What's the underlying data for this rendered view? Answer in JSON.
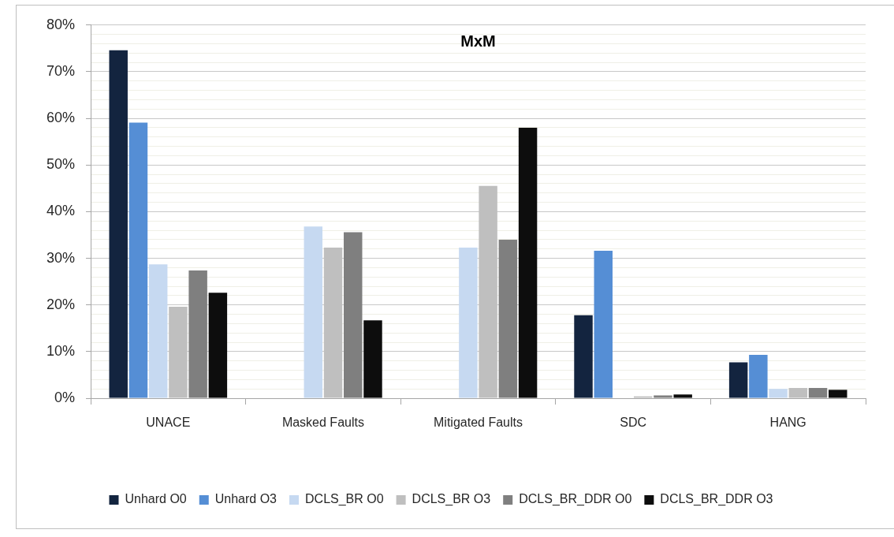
{
  "chart_data": {
    "type": "bar",
    "title": "MxM",
    "categories": [
      "UNACE",
      "Masked Faults",
      "Mitigated Faults",
      "SDC",
      "HANG"
    ],
    "series": [
      {
        "name": "Unhard O0",
        "color": "#13243f",
        "values": [
          74.6,
          null,
          null,
          17.8,
          7.7
        ]
      },
      {
        "name": "Unhard O3",
        "color": "#558ed5",
        "values": [
          59.1,
          null,
          null,
          31.6,
          9.3
        ]
      },
      {
        "name": "DCLS_BR O0",
        "color": "#c6d9f1",
        "values": [
          28.7,
          36.8,
          32.3,
          null,
          2.0
        ]
      },
      {
        "name": "DCLS_BR O3",
        "color": "#bfbfbf",
        "values": [
          19.6,
          32.3,
          45.5,
          0.4,
          2.2
        ]
      },
      {
        "name": "DCLS_BR_DDR O0",
        "color": "#7f7f7f",
        "values": [
          27.4,
          35.6,
          34.0,
          0.6,
          2.2
        ]
      },
      {
        "name": "DCLS_BR_DDR O3",
        "color": "#0d0d0d",
        "values": [
          22.6,
          16.7,
          58.0,
          0.8,
          1.8
        ]
      }
    ],
    "ylim": [
      0,
      80
    ],
    "yticks": [
      {
        "value": 0,
        "label": "0%"
      },
      {
        "value": 2,
        "label": null
      },
      {
        "value": 4,
        "label": null
      },
      {
        "value": 6,
        "label": null
      },
      {
        "value": 8,
        "label": null
      },
      {
        "value": 10,
        "label": "10%"
      },
      {
        "value": 12,
        "label": null
      },
      {
        "value": 14,
        "label": null
      },
      {
        "value": 16,
        "label": null
      },
      {
        "value": 18,
        "label": null
      },
      {
        "value": 20,
        "label": "20%"
      },
      {
        "value": 22,
        "label": null
      },
      {
        "value": 24,
        "label": null
      },
      {
        "value": 26,
        "label": null
      },
      {
        "value": 28,
        "label": null
      },
      {
        "value": 30,
        "label": "30%"
      },
      {
        "value": 32,
        "label": null
      },
      {
        "value": 34,
        "label": null
      },
      {
        "value": 36,
        "label": null
      },
      {
        "value": 38,
        "label": null
      },
      {
        "value": 40,
        "label": "40%"
      },
      {
        "value": 42,
        "label": null
      },
      {
        "value": 44,
        "label": null
      },
      {
        "value": 46,
        "label": null
      },
      {
        "value": 48,
        "label": null
      },
      {
        "value": 50,
        "label": "50%"
      },
      {
        "value": 52,
        "label": null
      },
      {
        "value": 54,
        "label": null
      },
      {
        "value": 56,
        "label": null
      },
      {
        "value": 58,
        "label": null
      },
      {
        "value": 60,
        "label": "60%"
      },
      {
        "value": 62,
        "label": null
      },
      {
        "value": 64,
        "label": null
      },
      {
        "value": 66,
        "label": null
      },
      {
        "value": 68,
        "label": null
      },
      {
        "value": 70,
        "label": "70%"
      },
      {
        "value": 72,
        "label": null
      },
      {
        "value": 74,
        "label": null
      },
      {
        "value": 76,
        "label": null
      },
      {
        "value": 78,
        "label": null
      },
      {
        "value": 80,
        "label": "80%"
      }
    ],
    "grid": "y",
    "legend": "bottom"
  }
}
